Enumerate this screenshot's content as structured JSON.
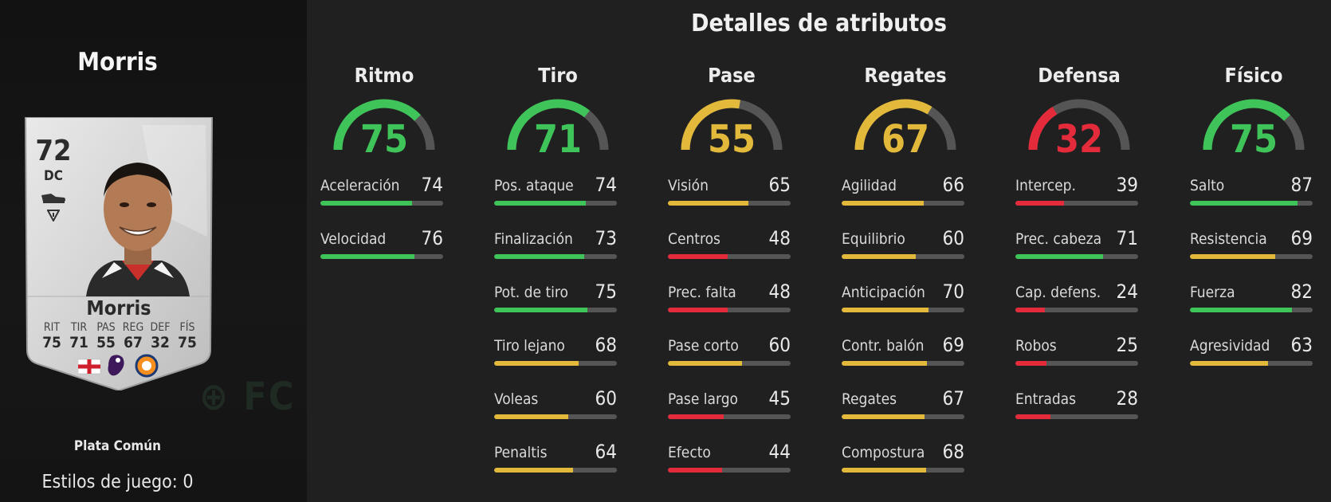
{
  "colors": {
    "green": "#3fc45a",
    "yellow": "#e2b93b",
    "red": "#e32b3c",
    "track": "#555555"
  },
  "player": {
    "name": "Morris",
    "card_name": "Morris",
    "overall": "72",
    "position": "DC",
    "card_stats": [
      {
        "label": "RIT",
        "value": "75"
      },
      {
        "label": "TIR",
        "value": "71"
      },
      {
        "label": "PAS",
        "value": "55"
      },
      {
        "label": "REG",
        "value": "67"
      },
      {
        "label": "DEF",
        "value": "32"
      },
      {
        "label": "FÍS",
        "value": "75"
      }
    ],
    "quality": "Plata Común",
    "playstyles": "Estilos de juego: 0"
  },
  "page": {
    "title": "Detalles de atributos"
  },
  "categories": [
    {
      "name": "Ritmo",
      "value": 75,
      "value_text": "75",
      "color": "green",
      "attributes": [
        {
          "label": "Aceleración",
          "value": "74",
          "color": "green"
        },
        {
          "label": "Velocidad",
          "value": "76",
          "color": "green"
        }
      ]
    },
    {
      "name": "Tiro",
      "value": 71,
      "value_text": "71",
      "color": "green",
      "attributes": [
        {
          "label": "Pos. ataque",
          "value": "74",
          "color": "green"
        },
        {
          "label": "Finalización",
          "value": "73",
          "color": "green"
        },
        {
          "label": "Pot. de tiro",
          "value": "75",
          "color": "green"
        },
        {
          "label": "Tiro lejano",
          "value": "68",
          "color": "yellow"
        },
        {
          "label": "Voleas",
          "value": "60",
          "color": "yellow"
        },
        {
          "label": "Penaltis",
          "value": "64",
          "color": "yellow"
        }
      ]
    },
    {
      "name": "Pase",
      "value": 55,
      "value_text": "55",
      "color": "yellow",
      "attributes": [
        {
          "label": "Visión",
          "value": "65",
          "color": "yellow"
        },
        {
          "label": "Centros",
          "value": "48",
          "color": "red"
        },
        {
          "label": "Prec. falta",
          "value": "48",
          "color": "red"
        },
        {
          "label": "Pase corto",
          "value": "60",
          "color": "yellow"
        },
        {
          "label": "Pase largo",
          "value": "45",
          "color": "red"
        },
        {
          "label": "Efecto",
          "value": "44",
          "color": "red"
        }
      ]
    },
    {
      "name": "Regates",
      "value": 67,
      "value_text": "67",
      "color": "yellow",
      "attributes": [
        {
          "label": "Agilidad",
          "value": "66",
          "color": "yellow"
        },
        {
          "label": "Equilibrio",
          "value": "60",
          "color": "yellow"
        },
        {
          "label": "Anticipación",
          "value": "70",
          "color": "yellow"
        },
        {
          "label": "Contr. balón",
          "value": "69",
          "color": "yellow"
        },
        {
          "label": "Regates",
          "value": "67",
          "color": "yellow"
        },
        {
          "label": "Compostura",
          "value": "68",
          "color": "yellow"
        }
      ]
    },
    {
      "name": "Defensa",
      "value": 32,
      "value_text": "32",
      "color": "red",
      "attributes": [
        {
          "label": "Intercep.",
          "value": "39",
          "color": "red"
        },
        {
          "label": "Prec. cabeza",
          "value": "71",
          "color": "green"
        },
        {
          "label": "Cap. defens.",
          "value": "24",
          "color": "red"
        },
        {
          "label": "Robos",
          "value": "25",
          "color": "red"
        },
        {
          "label": "Entradas",
          "value": "28",
          "color": "red"
        }
      ]
    },
    {
      "name": "Físico",
      "value": 75,
      "value_text": "75",
      "color": "green",
      "attributes": [
        {
          "label": "Salto",
          "value": "87",
          "color": "green"
        },
        {
          "label": "Resistencia",
          "value": "69",
          "color": "yellow"
        },
        {
          "label": "Fuerza",
          "value": "82",
          "color": "green"
        },
        {
          "label": "Agresividad",
          "value": "63",
          "color": "yellow"
        }
      ]
    }
  ]
}
